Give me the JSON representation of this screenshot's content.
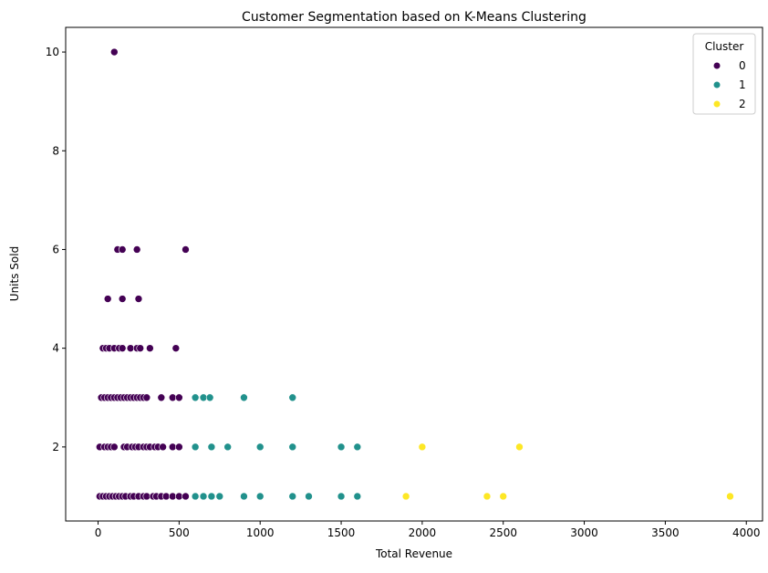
{
  "chart_data": {
    "type": "scatter",
    "title": "Customer Segmentation based on K-Means Clustering",
    "xlabel": "Total Revenue",
    "ylabel": "Units Sold",
    "xlim": [
      -200,
      4100
    ],
    "ylim": [
      0.5,
      10.5
    ],
    "xticks": [
      0,
      500,
      1000,
      1500,
      2000,
      2500,
      3000,
      3500,
      4000
    ],
    "yticks": [
      2,
      4,
      6,
      8,
      10
    ],
    "grid": false,
    "legend": {
      "title": "Cluster",
      "position": "top-right"
    },
    "series": [
      {
        "name": "0",
        "color": "#440154",
        "points": [
          [
            100,
            10
          ],
          [
            120,
            6
          ],
          [
            150,
            6
          ],
          [
            240,
            6
          ],
          [
            540,
            6
          ],
          [
            60,
            5
          ],
          [
            150,
            5
          ],
          [
            250,
            5
          ],
          [
            30,
            4
          ],
          [
            50,
            4
          ],
          [
            70,
            4
          ],
          [
            100,
            4
          ],
          [
            130,
            4
          ],
          [
            150,
            4
          ],
          [
            200,
            4
          ],
          [
            240,
            4
          ],
          [
            260,
            4
          ],
          [
            320,
            4
          ],
          [
            480,
            4
          ],
          [
            20,
            3
          ],
          [
            40,
            3
          ],
          [
            60,
            3
          ],
          [
            80,
            3
          ],
          [
            100,
            3
          ],
          [
            120,
            3
          ],
          [
            140,
            3
          ],
          [
            160,
            3
          ],
          [
            180,
            3
          ],
          [
            200,
            3
          ],
          [
            220,
            3
          ],
          [
            240,
            3
          ],
          [
            260,
            3
          ],
          [
            280,
            3
          ],
          [
            300,
            3
          ],
          [
            390,
            3
          ],
          [
            460,
            3
          ],
          [
            500,
            3
          ],
          [
            10,
            2
          ],
          [
            40,
            2
          ],
          [
            60,
            2
          ],
          [
            80,
            2
          ],
          [
            100,
            2
          ],
          [
            160,
            2
          ],
          [
            180,
            2
          ],
          [
            210,
            2
          ],
          [
            230,
            2
          ],
          [
            250,
            2
          ],
          [
            280,
            2
          ],
          [
            300,
            2
          ],
          [
            320,
            2
          ],
          [
            350,
            2
          ],
          [
            370,
            2
          ],
          [
            400,
            2
          ],
          [
            460,
            2
          ],
          [
            500,
            2
          ],
          [
            10,
            1
          ],
          [
            30,
            1
          ],
          [
            50,
            1
          ],
          [
            70,
            1
          ],
          [
            90,
            1
          ],
          [
            110,
            1
          ],
          [
            130,
            1
          ],
          [
            150,
            1
          ],
          [
            170,
            1
          ],
          [
            200,
            1
          ],
          [
            220,
            1
          ],
          [
            250,
            1
          ],
          [
            280,
            1
          ],
          [
            300,
            1
          ],
          [
            340,
            1
          ],
          [
            360,
            1
          ],
          [
            390,
            1
          ],
          [
            420,
            1
          ],
          [
            460,
            1
          ],
          [
            500,
            1
          ],
          [
            540,
            1
          ]
        ]
      },
      {
        "name": "1",
        "color": "#21918c",
        "points": [
          [
            600,
            3
          ],
          [
            650,
            3
          ],
          [
            690,
            3
          ],
          [
            900,
            3
          ],
          [
            1200,
            3
          ],
          [
            600,
            2
          ],
          [
            700,
            2
          ],
          [
            800,
            2
          ],
          [
            1000,
            2
          ],
          [
            1200,
            2
          ],
          [
            1500,
            2
          ],
          [
            1600,
            2
          ],
          [
            600,
            1
          ],
          [
            650,
            1
          ],
          [
            700,
            1
          ],
          [
            750,
            1
          ],
          [
            900,
            1
          ],
          [
            1000,
            1
          ],
          [
            1200,
            1
          ],
          [
            1300,
            1
          ],
          [
            1500,
            1
          ],
          [
            1600,
            1
          ]
        ]
      },
      {
        "name": "2",
        "color": "#fde725",
        "points": [
          [
            2000,
            2
          ],
          [
            2600,
            2
          ],
          [
            1900,
            1
          ],
          [
            2400,
            1
          ],
          [
            2500,
            1
          ],
          [
            3900,
            1
          ]
        ]
      }
    ]
  }
}
